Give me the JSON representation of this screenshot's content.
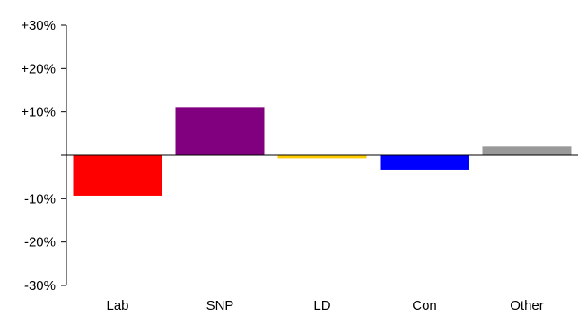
{
  "chart_data": {
    "type": "bar",
    "categories": [
      "Lab",
      "SNP",
      "LD",
      "Con",
      "Other"
    ],
    "values": [
      -9.3,
      11.1,
      -0.7,
      -3.3,
      2.0
    ],
    "colors": [
      "#ff0000",
      "#800080",
      "#ffcc00",
      "#0000ff",
      "#999999"
    ],
    "yticks": [
      30,
      20,
      10,
      -10,
      -20,
      -30
    ],
    "ytick_labels": [
      "+30%",
      "+20%",
      "+10%",
      "-10%",
      "-20%",
      "-30%"
    ],
    "ylim": [
      -30,
      30
    ],
    "title": "",
    "xlabel": "",
    "ylabel": ""
  }
}
